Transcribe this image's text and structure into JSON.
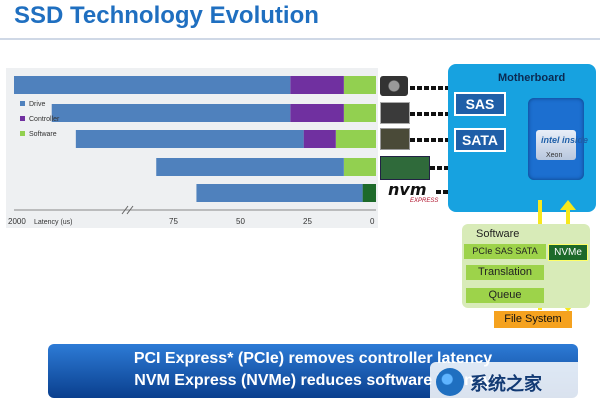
{
  "title": "SSD Technology Evolution",
  "chart_data": {
    "type": "bar",
    "stacked": true,
    "horizontal": true,
    "x_reversed": true,
    "xlabel": "Latency (us)",
    "axis_break": true,
    "x_ticks": [
      "2000",
      "75",
      "50",
      "25",
      "0"
    ],
    "legend_position": "left",
    "series": [
      {
        "name": "Drive",
        "color": "#4f81bd",
        "values": [
          2000,
          89,
          85,
          70,
          62
        ]
      },
      {
        "name": "Controller",
        "color": "#7030a0",
        "values": [
          20,
          20,
          12,
          0,
          0
        ]
      },
      {
        "name": "Software",
        "color": "#92d050",
        "values": [
          12,
          12,
          15,
          12,
          0
        ]
      }
    ],
    "nvme_row_software_color": "#1d6a2a",
    "nvme_row_software_value": 5
  },
  "devices": [
    "hdd",
    "sas-ssd",
    "sata-ssd",
    "pcie-ssd"
  ],
  "nvm_logo": "nvm",
  "nvm_logo_sub": "EXPRESS",
  "motherboard": {
    "label": "Motherboard",
    "ports": [
      "SAS",
      "SATA"
    ],
    "cpu_brand": "intel inside",
    "cpu_model": "Xeon"
  },
  "software_stack": {
    "title": "Software",
    "pcie_label": "PCIe SAS SATA",
    "nvme_label": "NVMe",
    "translation": "Translation",
    "queue": "Queue",
    "file_system": "File System"
  },
  "banner": {
    "line1": "PCI Express* (PCIe) removes controller latency",
    "line2": "NVM Express (NVMe) reduces software latency"
  },
  "watermark": "系统之家",
  "colors": {
    "title": "#1f6fc0",
    "motherboard": "#17a2e0",
    "banner_top": "#2d7bd6",
    "banner_bottom": "#0a3f8e"
  }
}
